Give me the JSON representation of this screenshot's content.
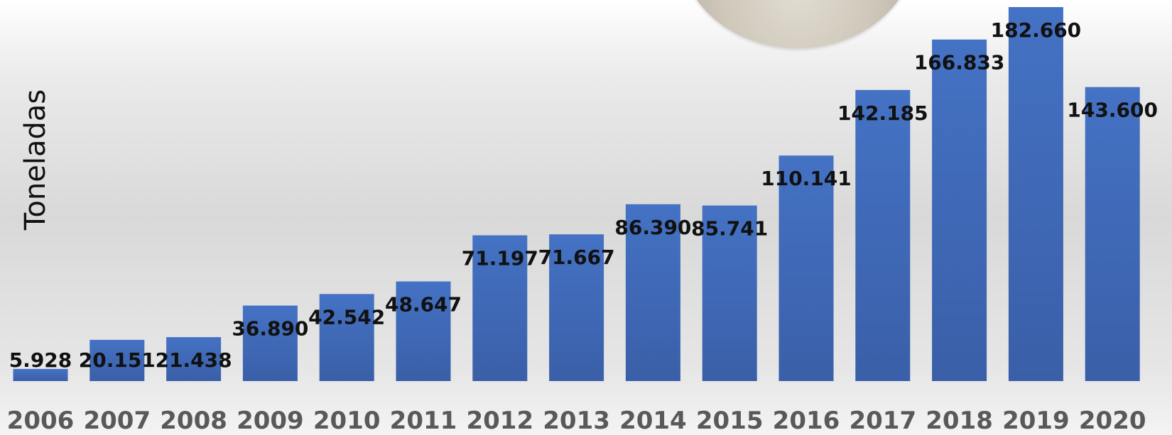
{
  "chart_data": {
    "type": "bar",
    "title": "",
    "xlabel": "",
    "ylabel": "Toneladas",
    "categories": [
      "2006",
      "2007",
      "2008",
      "2009",
      "2010",
      "2011",
      "2012",
      "2013",
      "2014",
      "2015",
      "2016",
      "2017",
      "2018",
      "2019",
      "2020"
    ],
    "values": [
      5928,
      20151,
      21438,
      36890,
      42542,
      48647,
      71197,
      71667,
      86390,
      85741,
      110141,
      142185,
      166833,
      182660,
      143600
    ],
    "data_labels": [
      "5.928",
      "20.151",
      "21.438",
      "36.890",
      "42.542",
      "48.647",
      "71.197",
      "71.667",
      "86.390",
      "85.741",
      "110.141",
      "142.185",
      "166.833",
      "182.660",
      "143.600"
    ],
    "ylim": [
      0,
      182660
    ],
    "grid": false,
    "legend": "none",
    "colors": {
      "bar_top": "#4472c4",
      "bar_bottom": "#3a5fa8",
      "tick_text": "#595959",
      "label_text": "#111111"
    }
  }
}
